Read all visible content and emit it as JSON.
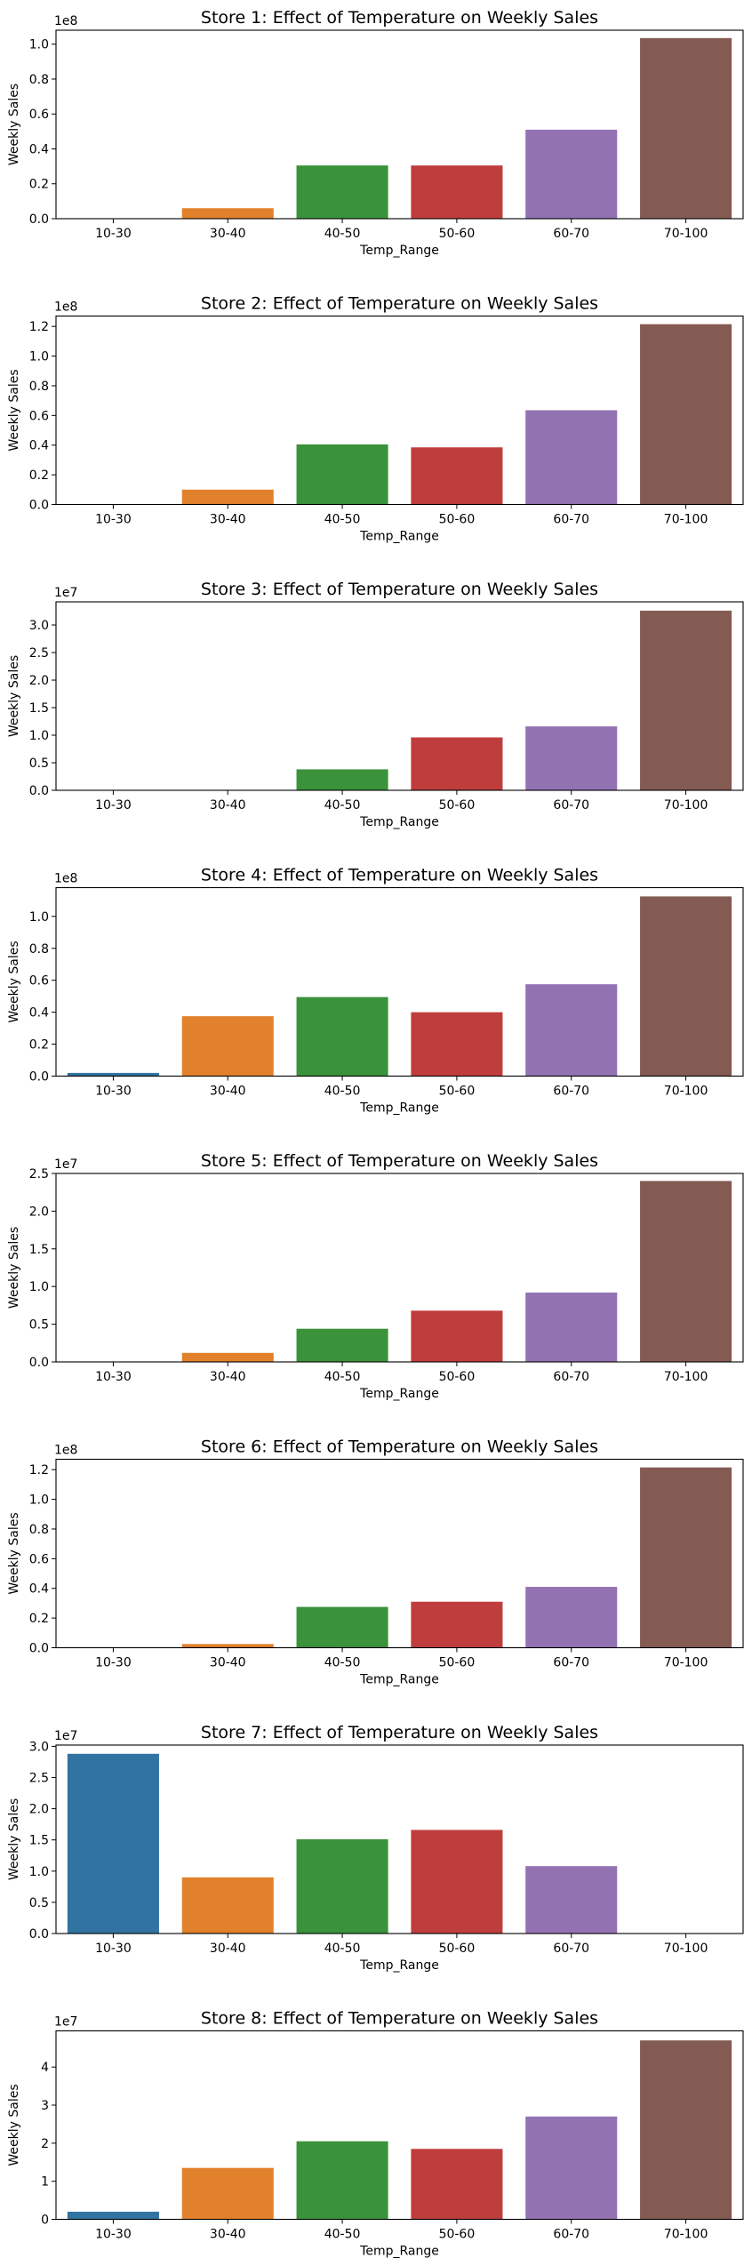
{
  "figure": {
    "palette": [
      "#3274a1",
      "#e1812c",
      "#3a923a",
      "#c03d3e",
      "#9372b2",
      "#845b53"
    ]
  },
  "chart_data": [
    {
      "type": "bar",
      "title": "Store  1: Effect of Temperature on Weekly Sales",
      "xlabel": "Temp_Range",
      "ylabel": "Weekly Sales",
      "offset_label": "1e8",
      "scale": 100000000,
      "categories": [
        "10-30",
        "30-40",
        "40-50",
        "50-60",
        "60-70",
        "70-100"
      ],
      "values": [
        0,
        6000000,
        30500000,
        30500000,
        51000000,
        103500000
      ],
      "ylim": [
        0,
        108000000
      ],
      "yticks": [
        0,
        20000000,
        40000000,
        60000000,
        80000000,
        100000000
      ],
      "ytick_labels": [
        "0.0",
        "0.2",
        "0.4",
        "0.6",
        "0.8",
        "1.0"
      ]
    },
    {
      "type": "bar",
      "title": "Store  2: Effect of Temperature on Weekly Sales",
      "xlabel": "Temp_Range",
      "ylabel": "Weekly Sales",
      "offset_label": "1e8",
      "scale": 100000000,
      "categories": [
        "10-30",
        "30-40",
        "40-50",
        "50-60",
        "60-70",
        "70-100"
      ],
      "values": [
        0,
        10000000,
        40500000,
        38500000,
        63500000,
        121500000
      ],
      "ylim": [
        0,
        127000000
      ],
      "yticks": [
        0,
        20000000,
        40000000,
        60000000,
        80000000,
        100000000,
        120000000
      ],
      "ytick_labels": [
        "0.0",
        "0.2",
        "0.4",
        "0.6",
        "0.8",
        "1.0",
        "1.2"
      ]
    },
    {
      "type": "bar",
      "title": "Store  3: Effect of Temperature on Weekly Sales",
      "xlabel": "Temp_Range",
      "ylabel": "Weekly Sales",
      "offset_label": "1e7",
      "scale": 10000000,
      "categories": [
        "10-30",
        "30-40",
        "40-50",
        "50-60",
        "60-70",
        "70-100"
      ],
      "values": [
        0,
        0,
        3800000,
        9600000,
        11600000,
        32600000
      ],
      "ylim": [
        0,
        34200000
      ],
      "yticks": [
        0,
        5000000,
        10000000,
        15000000,
        20000000,
        25000000,
        30000000
      ],
      "ytick_labels": [
        "0.0",
        "0.5",
        "1.0",
        "1.5",
        "2.0",
        "2.5",
        "3.0"
      ]
    },
    {
      "type": "bar",
      "title": "Store  4: Effect of Temperature on Weekly Sales",
      "xlabel": "Temp_Range",
      "ylabel": "Weekly Sales",
      "offset_label": "1e8",
      "scale": 100000000,
      "categories": [
        "10-30",
        "30-40",
        "40-50",
        "50-60",
        "60-70",
        "70-100"
      ],
      "values": [
        2000000,
        37500000,
        49500000,
        40000000,
        57500000,
        112500000
      ],
      "ylim": [
        0,
        118000000
      ],
      "yticks": [
        0,
        20000000,
        40000000,
        60000000,
        80000000,
        100000000
      ],
      "ytick_labels": [
        "0.0",
        "0.2",
        "0.4",
        "0.6",
        "0.8",
        "1.0"
      ]
    },
    {
      "type": "bar",
      "title": "Store  5: Effect of Temperature on Weekly Sales",
      "xlabel": "Temp_Range",
      "ylabel": "Weekly Sales",
      "offset_label": "1e7",
      "scale": 10000000,
      "categories": [
        "10-30",
        "30-40",
        "40-50",
        "50-60",
        "60-70",
        "70-100"
      ],
      "values": [
        0,
        1200000,
        4400000,
        6800000,
        9200000,
        24000000
      ],
      "ylim": [
        0,
        25000000
      ],
      "yticks": [
        0,
        5000000,
        10000000,
        15000000,
        20000000,
        25000000
      ],
      "ytick_labels": [
        "0.0",
        "0.5",
        "1.0",
        "1.5",
        "2.0",
        "2.5"
      ]
    },
    {
      "type": "bar",
      "title": "Store  6: Effect of Temperature on Weekly Sales",
      "xlabel": "Temp_Range",
      "ylabel": "Weekly Sales",
      "offset_label": "1e8",
      "scale": 100000000,
      "categories": [
        "10-30",
        "30-40",
        "40-50",
        "50-60",
        "60-70",
        "70-100"
      ],
      "values": [
        0,
        2500000,
        27500000,
        31000000,
        41000000,
        121500000
      ],
      "ylim": [
        0,
        127000000
      ],
      "yticks": [
        0,
        20000000,
        40000000,
        60000000,
        80000000,
        100000000,
        120000000
      ],
      "ytick_labels": [
        "0.0",
        "0.2",
        "0.4",
        "0.6",
        "0.8",
        "1.0",
        "1.2"
      ]
    },
    {
      "type": "bar",
      "title": "Store  7: Effect of Temperature on Weekly Sales",
      "xlabel": "Temp_Range",
      "ylabel": "Weekly Sales",
      "offset_label": "1e7",
      "scale": 10000000,
      "categories": [
        "10-30",
        "30-40",
        "40-50",
        "50-60",
        "60-70",
        "70-100"
      ],
      "values": [
        28800000,
        9000000,
        15100000,
        16600000,
        10800000,
        0
      ],
      "ylim": [
        0,
        30200000
      ],
      "yticks": [
        0,
        5000000,
        10000000,
        15000000,
        20000000,
        25000000,
        30000000
      ],
      "ytick_labels": [
        "0.0",
        "0.5",
        "1.0",
        "1.5",
        "2.0",
        "2.5",
        "3.0"
      ]
    },
    {
      "type": "bar",
      "title": "Store  8: Effect of Temperature on Weekly Sales",
      "xlabel": "Temp_Range",
      "ylabel": "Weekly Sales",
      "offset_label": "1e7",
      "scale": 10000000,
      "categories": [
        "10-30",
        "30-40",
        "40-50",
        "50-60",
        "60-70",
        "70-100"
      ],
      "values": [
        2000000,
        13500000,
        20500000,
        18500000,
        27000000,
        47000000
      ],
      "ylim": [
        0,
        49500000
      ],
      "yticks": [
        0,
        10000000,
        20000000,
        30000000,
        40000000
      ],
      "ytick_labels": [
        "0",
        "1",
        "2",
        "3",
        "4"
      ]
    }
  ]
}
